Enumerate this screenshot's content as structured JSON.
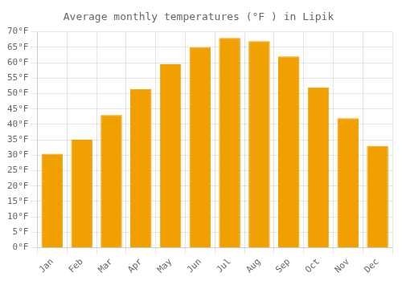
{
  "chart_data": {
    "type": "bar",
    "title": "Average monthly temperatures (°F ) in Lipik",
    "categories": [
      "Jan",
      "Feb",
      "Mar",
      "Apr",
      "May",
      "Jun",
      "Jul",
      "Aug",
      "Sep",
      "Oct",
      "Nov",
      "Dec"
    ],
    "values": [
      30.5,
      35.0,
      43.0,
      51.5,
      59.5,
      65.0,
      68.0,
      67.0,
      62.0,
      52.0,
      42.0,
      33.0
    ],
    "color": "#F0A000",
    "ylim": [
      0,
      70
    ],
    "yticks": [
      {
        "value": 0,
        "label": "0°F"
      },
      {
        "value": 5,
        "label": "5°F"
      },
      {
        "value": 10,
        "label": "10°F"
      },
      {
        "value": 15,
        "label": "15°F"
      },
      {
        "value": 20,
        "label": "20°F"
      },
      {
        "value": 25,
        "label": "25°F"
      },
      {
        "value": 30,
        "label": "30°F"
      },
      {
        "value": 35,
        "label": "35°F"
      },
      {
        "value": 40,
        "label": "40°F"
      },
      {
        "value": 45,
        "label": "45°F"
      },
      {
        "value": 50,
        "label": "50°F"
      },
      {
        "value": 55,
        "label": "55°F"
      },
      {
        "value": 60,
        "label": "60°F"
      },
      {
        "value": 65,
        "label": "65°F"
      },
      {
        "value": 70,
        "label": "70°F"
      }
    ],
    "grid": true
  }
}
